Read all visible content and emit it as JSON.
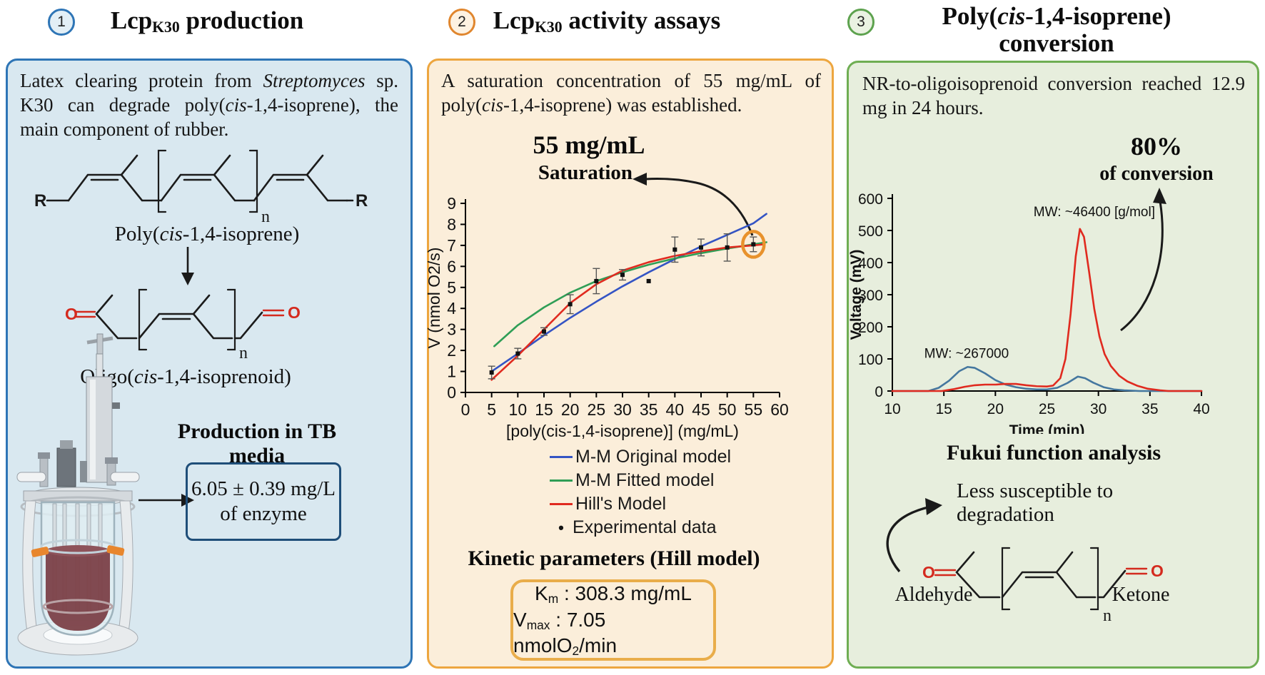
{
  "colors": {
    "panel1_accent": "#2e75b6",
    "panel1_bg": "#d9e8f0",
    "panel2_accent": "#eda63f",
    "panel2_bg": "#fbeeda",
    "panel3_accent": "#6fae53",
    "panel3_bg": "#e7eedd",
    "ring_annotation": "#e8922c",
    "carbonyl_red": "#d42a1e",
    "mm_original_blue": "#3454c4",
    "mm_fitted_green": "#2f9e56",
    "hill_red": "#e02a1f",
    "gpc_nr_blue": "#45779f",
    "gpc_oligo_red": "#e02a1f"
  },
  "p1": {
    "num": "1",
    "title": [
      {
        "t": "Lcp"
      },
      {
        "t": "K30",
        "s": "sub"
      },
      {
        "t": " production"
      }
    ],
    "summary": [
      {
        "t": "Latex clearing protein from "
      },
      {
        "t": "Streptomyces",
        "s": "i"
      },
      {
        "t": " sp. K30 can degrade poly("
      },
      {
        "t": "cis",
        "s": "i"
      },
      {
        "t": "-1,4-isoprene), the main component of rubber."
      }
    ],
    "struct1_label": [
      {
        "t": "Poly("
      },
      {
        "t": "cis",
        "s": "i"
      },
      {
        "t": "-1,4-isoprene)"
      }
    ],
    "struct2_label": [
      {
        "t": "Oligo("
      },
      {
        "t": "cis",
        "s": "i"
      },
      {
        "t": "-1,4-isoprenoid)"
      }
    ],
    "r_left": "R",
    "r_right": "R",
    "n1": "n",
    "n2": "n",
    "o_left": "O",
    "o_right": "O",
    "heading": "Production in TB media",
    "yield_line1": "6.05 ± 0.39 mg/L",
    "yield_line2": "of enzyme"
  },
  "p2": {
    "num": "2",
    "title": [
      {
        "t": "Lcp"
      },
      {
        "t": "K30",
        "s": "sub"
      },
      {
        "t": " activity assays"
      }
    ],
    "summary": [
      {
        "t": "A saturation concentration of 55 mg/mL of poly("
      },
      {
        "t": "cis",
        "s": "i"
      },
      {
        "t": "-1,4-isoprene) was established."
      }
    ],
    "callout_value": "55 mg/mL",
    "callout_label": "Saturation",
    "kinetics_heading": "Kinetic parameters (Hill model)",
    "km": [
      {
        "t": "K"
      },
      {
        "t": "m",
        "s": "sub"
      },
      {
        "t": " : 308.3 mg/mL"
      }
    ],
    "vmax": [
      {
        "t": "V"
      },
      {
        "t": "max",
        "s": "sub"
      },
      {
        "t": " : 7.05 nmolO"
      },
      {
        "t": "2",
        "s": "sub"
      },
      {
        "t": "/min"
      }
    ]
  },
  "p3": {
    "num": "3",
    "title": [
      {
        "t": "Poly("
      },
      {
        "t": "cis",
        "s": "i"
      },
      {
        "t": "-1,4-isoprene)"
      },
      {
        "s": "br"
      },
      {
        "t": "conversion"
      }
    ],
    "summary": [
      {
        "t": "NR-to-oligoisoprenoid conversion reached 12.9 mg in 24 hours."
      }
    ],
    "callout_value": "80%",
    "callout_label": "of conversion",
    "fukui_heading": "Fukui function analysis",
    "arrow_note": "Less susceptible to degradation",
    "aldehyde_label": "Aldehyde",
    "ketone_label": "Ketone",
    "n_label": "n",
    "o_left": "O",
    "o_right": "O"
  },
  "chart_data": [
    {
      "type": "line",
      "title": "",
      "xlabel": "[poly(cis-1,4-isoprene)] (mg/mL)",
      "ylabel": "V (nmol O2/s)",
      "xlim": [
        0,
        60
      ],
      "ylim": [
        0,
        9
      ],
      "xticks": [
        0,
        5,
        10,
        15,
        20,
        25,
        30,
        35,
        40,
        45,
        50,
        55,
        60
      ],
      "yticks": [
        0,
        1,
        2,
        3,
        4,
        5,
        6,
        7,
        8,
        9
      ],
      "grid": false,
      "legend_position": "below",
      "series": [
        {
          "name": "M-M Original model",
          "type": "line",
          "color": "#3454c4",
          "points": [
            [
              5,
              1.0
            ],
            [
              10,
              1.85
            ],
            [
              15,
              2.72
            ],
            [
              20,
              3.55
            ],
            [
              25,
              4.32
            ],
            [
              30,
              5.05
            ],
            [
              35,
              5.72
            ],
            [
              40,
              6.35
            ],
            [
              45,
              6.95
            ],
            [
              50,
              7.5
            ],
            [
              55,
              8.05
            ],
            [
              57.5,
              8.5
            ]
          ]
        },
        {
          "name": "M-M Fitted model",
          "type": "line",
          "color": "#2f9e56",
          "points": [
            [
              5.5,
              2.2
            ],
            [
              10,
              3.2
            ],
            [
              15,
              4.05
            ],
            [
              20,
              4.75
            ],
            [
              25,
              5.3
            ],
            [
              30,
              5.72
            ],
            [
              35,
              6.08
            ],
            [
              40,
              6.38
            ],
            [
              45,
              6.63
            ],
            [
              50,
              6.85
            ],
            [
              55,
              7.05
            ],
            [
              57.5,
              7.15
            ]
          ]
        },
        {
          "name": "Hill's Model",
          "type": "line",
          "color": "#e02a1f",
          "points": [
            [
              5,
              0.6
            ],
            [
              10,
              1.75
            ],
            [
              15,
              3.0
            ],
            [
              20,
              4.25
            ],
            [
              25,
              5.15
            ],
            [
              30,
              5.8
            ],
            [
              35,
              6.2
            ],
            [
              40,
              6.5
            ],
            [
              45,
              6.72
            ],
            [
              50,
              6.9
            ],
            [
              55,
              7.0
            ],
            [
              57,
              7.05
            ]
          ]
        },
        {
          "name": "Experimental data",
          "type": "scatter",
          "color": "#111111",
          "points": [
            [
              5,
              0.95,
              0.3
            ],
            [
              10,
              1.85,
              0.25
            ],
            [
              15,
              2.9,
              0.18
            ],
            [
              20,
              4.2,
              0.45
            ],
            [
              25,
              5.3,
              0.6
            ],
            [
              30,
              5.6,
              0.25
            ],
            [
              35,
              5.3,
              0
            ],
            [
              40,
              6.8,
              0.6
            ],
            [
              45,
              6.9,
              0.4
            ],
            [
              50,
              6.9,
              0.65
            ],
            [
              55,
              7.05,
              0.35
            ]
          ]
        }
      ],
      "annotations": [
        {
          "type": "ring",
          "x": 55,
          "y": 7.05,
          "color": "#e8922c"
        }
      ]
    },
    {
      "type": "line",
      "title": "",
      "xlabel": "Time (min)",
      "ylabel": "Voltage (mV)",
      "xlim": [
        10,
        40
      ],
      "ylim": [
        0,
        600
      ],
      "xticks": [
        10,
        15,
        20,
        25,
        30,
        35,
        40
      ],
      "yticks": [
        0,
        100,
        200,
        300,
        400,
        500,
        600
      ],
      "grid": false,
      "legend_position": "none",
      "series": [
        {
          "name": "MW: ~267000",
          "type": "line",
          "color": "#45779f",
          "points": [
            [
              10,
              0
            ],
            [
              13.5,
              0
            ],
            [
              14.5,
              10
            ],
            [
              15.5,
              32
            ],
            [
              16.5,
              62
            ],
            [
              17.3,
              75
            ],
            [
              18,
              72
            ],
            [
              19,
              55
            ],
            [
              20,
              34
            ],
            [
              21,
              20
            ],
            [
              22,
              12
            ],
            [
              23,
              7
            ],
            [
              24,
              5
            ],
            [
              25,
              5
            ],
            [
              26,
              10
            ],
            [
              27,
              25
            ],
            [
              28,
              45
            ],
            [
              28.7,
              40
            ],
            [
              29.5,
              26
            ],
            [
              30.5,
              12
            ],
            [
              31.5,
              5
            ],
            [
              32.5,
              2
            ],
            [
              34,
              0
            ],
            [
              40,
              0
            ]
          ]
        },
        {
          "name": "MW: ~46400 [g/mol]",
          "type": "line",
          "color": "#e02a1f",
          "points": [
            [
              10,
              0
            ],
            [
              14.8,
              0
            ],
            [
              16,
              6
            ],
            [
              17,
              13
            ],
            [
              18,
              18
            ],
            [
              19,
              20
            ],
            [
              20,
              20
            ],
            [
              21,
              22
            ],
            [
              22,
              22
            ],
            [
              23,
              18
            ],
            [
              24,
              15
            ],
            [
              25,
              14
            ],
            [
              25.6,
              17
            ],
            [
              26.3,
              40
            ],
            [
              26.8,
              100
            ],
            [
              27.3,
              240
            ],
            [
              27.8,
              420
            ],
            [
              28.2,
              505
            ],
            [
              28.6,
              480
            ],
            [
              29.1,
              370
            ],
            [
              29.6,
              255
            ],
            [
              30.1,
              170
            ],
            [
              30.6,
              115
            ],
            [
              31.2,
              78
            ],
            [
              32,
              48
            ],
            [
              32.8,
              30
            ],
            [
              33.8,
              16
            ],
            [
              34.8,
              7
            ],
            [
              36,
              2
            ],
            [
              36.8,
              0
            ],
            [
              40,
              0
            ]
          ]
        }
      ],
      "annotations": [
        {
          "type": "text",
          "x": 29.6,
          "y": 545,
          "text": "MW: ~46400 [g/mol]",
          "anchor": "middle"
        },
        {
          "type": "text",
          "x": 17.2,
          "y": 103,
          "text": "MW: ~267000",
          "anchor": "middle"
        }
      ]
    }
  ]
}
